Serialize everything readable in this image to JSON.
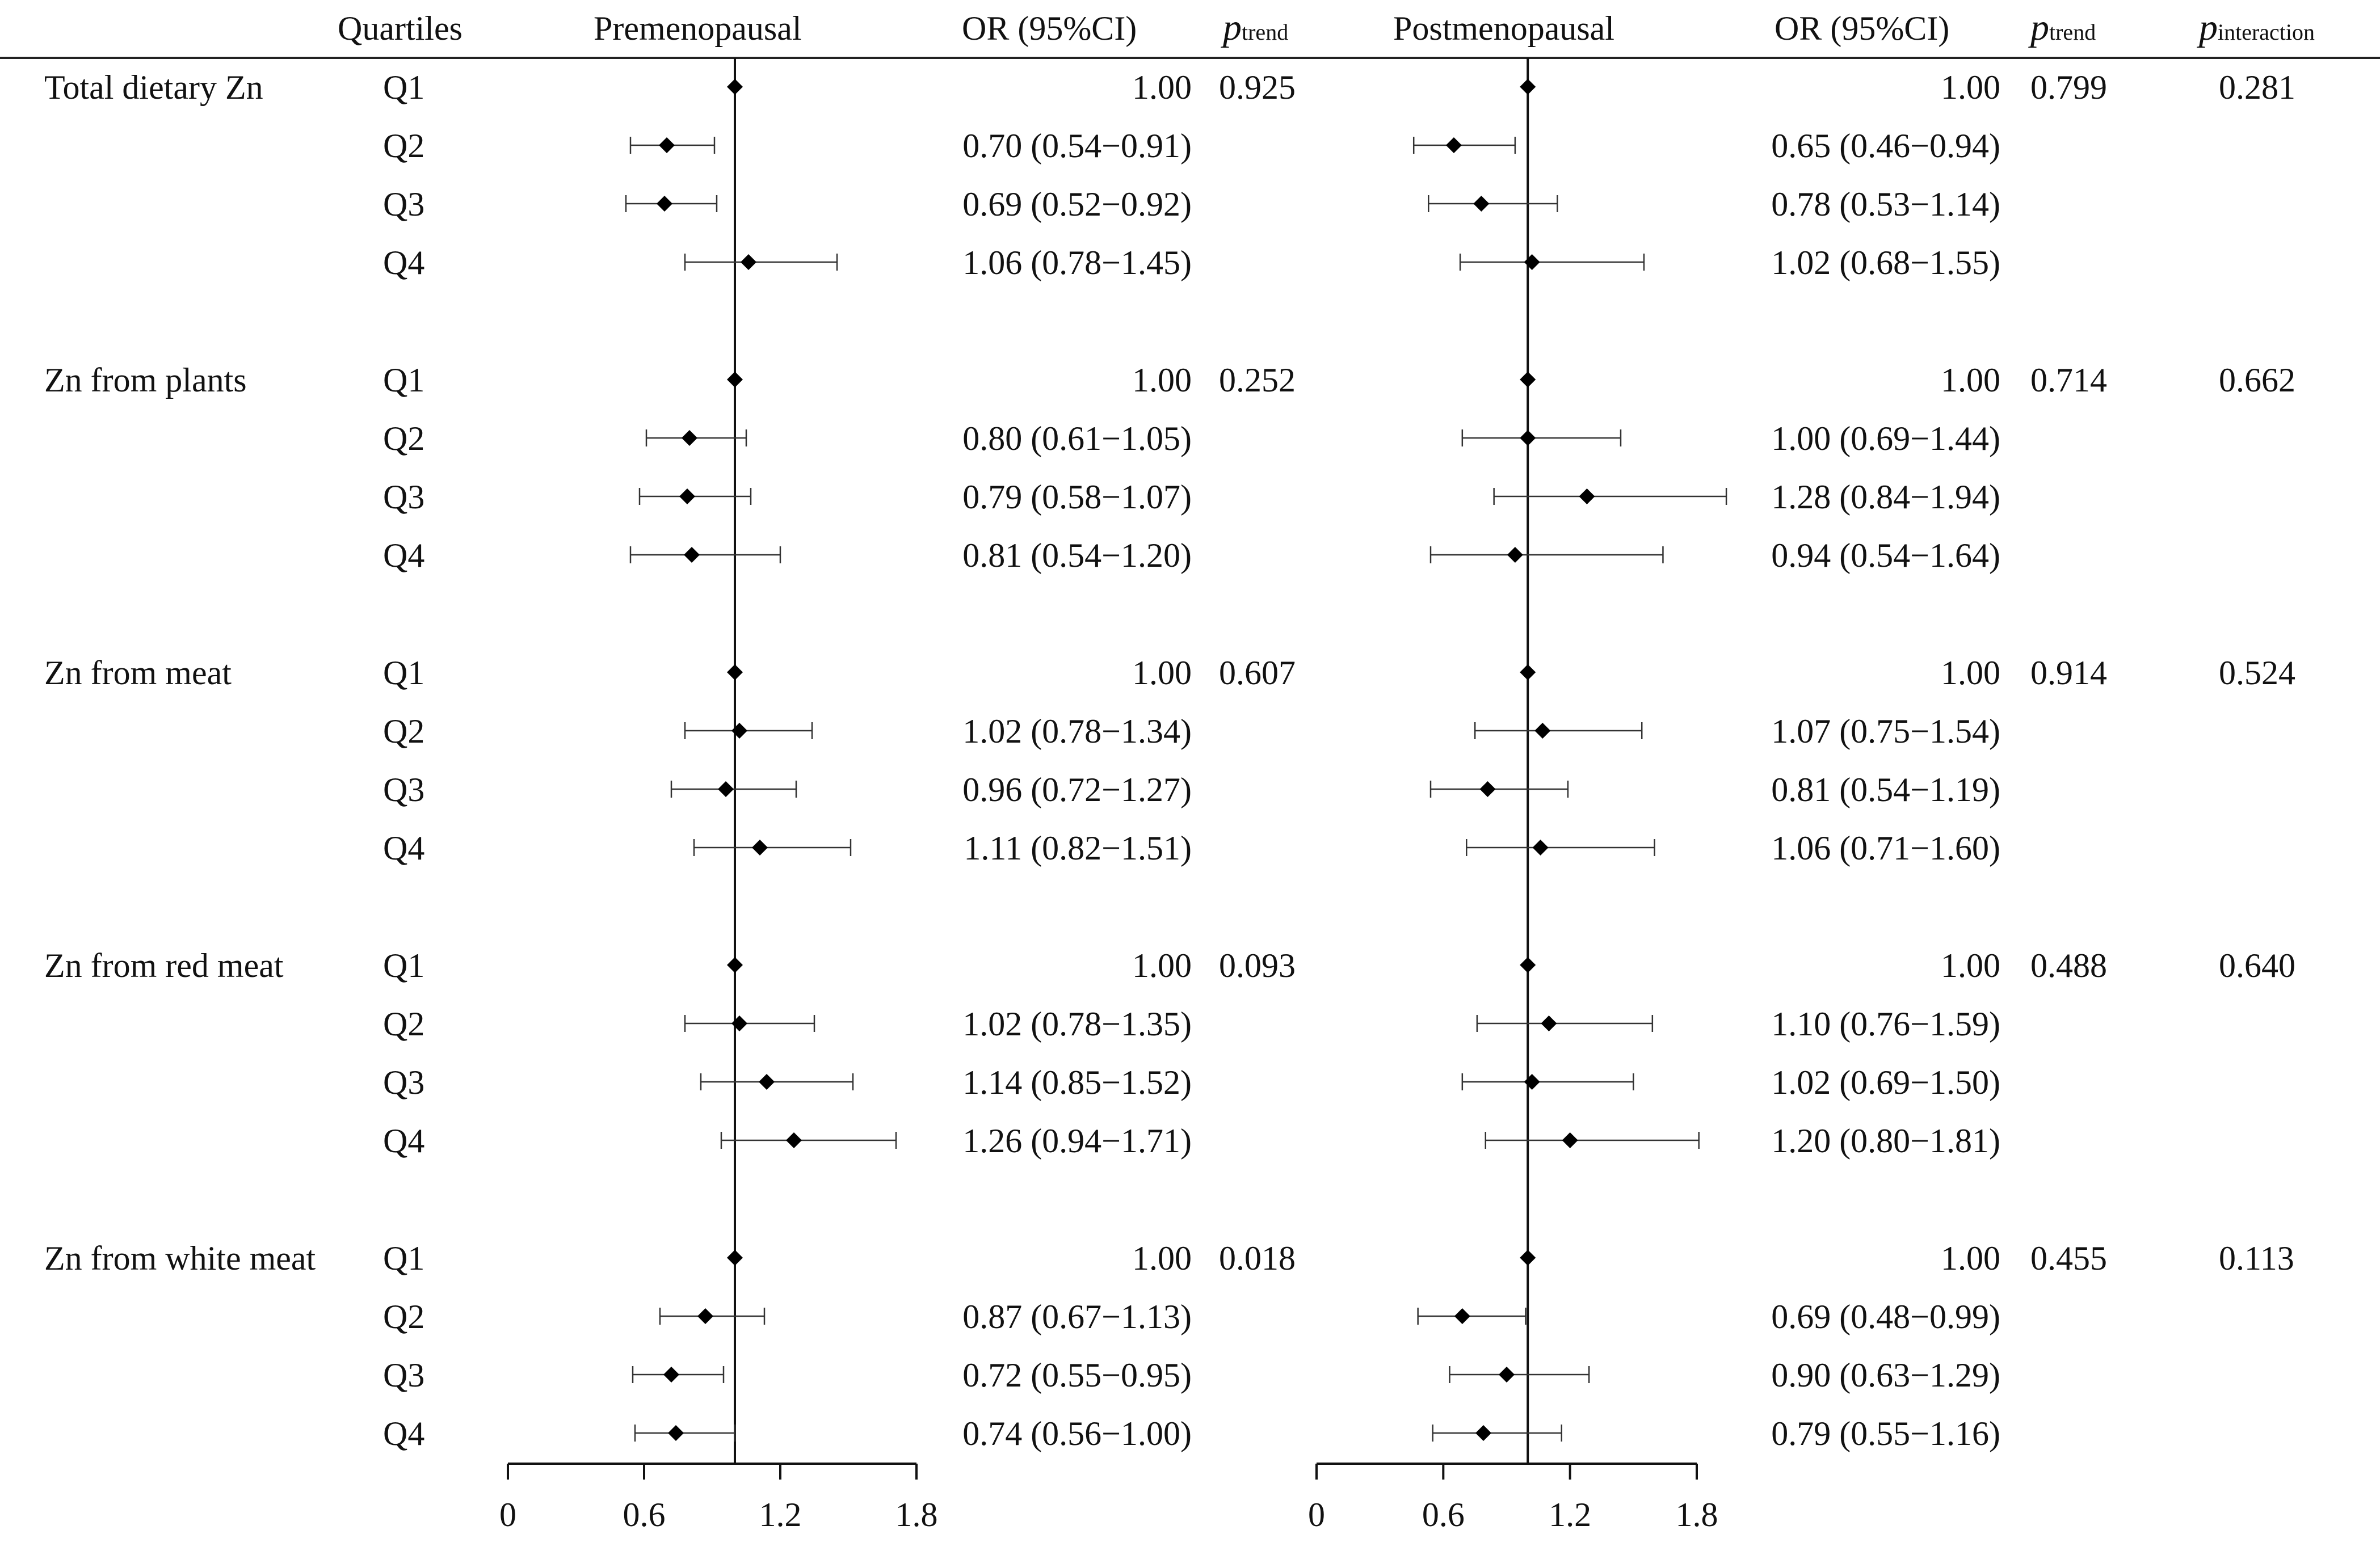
{
  "header": {
    "quartiles": "Quartiles",
    "premenopausal": "Premenopausal",
    "or_ci_pre": "OR (95%CI)",
    "p_trend_pre": {
      "p": "p",
      "sub": "trend"
    },
    "postmenopausal": "Postmenopausal",
    "or_ci_post": "OR (95%CI)",
    "p_trend_post": {
      "p": "p",
      "sub": "trend"
    },
    "p_interaction": {
      "p": "p",
      "sub": "interaction"
    }
  },
  "chart_data": {
    "type": "forest",
    "reference_value": 1.0,
    "xlim": [
      0,
      1.8
    ],
    "x_ticks": [
      "0",
      "0.6",
      "1.2",
      "1.8"
    ],
    "x_tick_values": [
      0,
      0.6,
      1.2,
      1.8
    ],
    "panels": [
      "Premenopausal",
      "Postmenopausal"
    ],
    "groups": [
      {
        "label": "Total dietary Zn",
        "p_trend_pre": "0.925",
        "p_trend_post": "0.799",
        "p_interaction": "0.281",
        "rows": [
          {
            "q": "Q1",
            "pre": {
              "or": 1.0,
              "lo": 1.0,
              "hi": 1.0,
              "text": "1.00"
            },
            "post": {
              "or": 1.0,
              "lo": 1.0,
              "hi": 1.0,
              "text": "1.00"
            }
          },
          {
            "q": "Q2",
            "pre": {
              "or": 0.7,
              "lo": 0.54,
              "hi": 0.91,
              "text": "0.70 (0.54−0.91)"
            },
            "post": {
              "or": 0.65,
              "lo": 0.46,
              "hi": 0.94,
              "text": "0.65 (0.46−0.94)"
            }
          },
          {
            "q": "Q3",
            "pre": {
              "or": 0.69,
              "lo": 0.52,
              "hi": 0.92,
              "text": "0.69 (0.52−0.92)"
            },
            "post": {
              "or": 0.78,
              "lo": 0.53,
              "hi": 1.14,
              "text": "0.78 (0.53−1.14)"
            }
          },
          {
            "q": "Q4",
            "pre": {
              "or": 1.06,
              "lo": 0.78,
              "hi": 1.45,
              "text": "1.06 (0.78−1.45)"
            },
            "post": {
              "or": 1.02,
              "lo": 0.68,
              "hi": 1.55,
              "text": "1.02 (0.68−1.55)"
            }
          }
        ]
      },
      {
        "label": "Zn from plants",
        "p_trend_pre": "0.252",
        "p_trend_post": "0.714",
        "p_interaction": "0.662",
        "rows": [
          {
            "q": "Q1",
            "pre": {
              "or": 1.0,
              "lo": 1.0,
              "hi": 1.0,
              "text": "1.00"
            },
            "post": {
              "or": 1.0,
              "lo": 1.0,
              "hi": 1.0,
              "text": "1.00"
            }
          },
          {
            "q": "Q2",
            "pre": {
              "or": 0.8,
              "lo": 0.61,
              "hi": 1.05,
              "text": "0.80 (0.61−1.05)"
            },
            "post": {
              "or": 1.0,
              "lo": 0.69,
              "hi": 1.44,
              "text": "1.00 (0.69−1.44)"
            }
          },
          {
            "q": "Q3",
            "pre": {
              "or": 0.79,
              "lo": 0.58,
              "hi": 1.07,
              "text": "0.79 (0.58−1.07)"
            },
            "post": {
              "or": 1.28,
              "lo": 0.84,
              "hi": 1.94,
              "text": "1.28 (0.84−1.94)"
            }
          },
          {
            "q": "Q4",
            "pre": {
              "or": 0.81,
              "lo": 0.54,
              "hi": 1.2,
              "text": "0.81 (0.54−1.20)"
            },
            "post": {
              "or": 0.94,
              "lo": 0.54,
              "hi": 1.64,
              "text": "0.94 (0.54−1.64)"
            }
          }
        ]
      },
      {
        "label": "Zn from meat",
        "p_trend_pre": "0.607",
        "p_trend_post": "0.914",
        "p_interaction": "0.524",
        "rows": [
          {
            "q": "Q1",
            "pre": {
              "or": 1.0,
              "lo": 1.0,
              "hi": 1.0,
              "text": "1.00"
            },
            "post": {
              "or": 1.0,
              "lo": 1.0,
              "hi": 1.0,
              "text": "1.00"
            }
          },
          {
            "q": "Q2",
            "pre": {
              "or": 1.02,
              "lo": 0.78,
              "hi": 1.34,
              "text": "1.02 (0.78−1.34)"
            },
            "post": {
              "or": 1.07,
              "lo": 0.75,
              "hi": 1.54,
              "text": "1.07 (0.75−1.54)"
            }
          },
          {
            "q": "Q3",
            "pre": {
              "or": 0.96,
              "lo": 0.72,
              "hi": 1.27,
              "text": "0.96 (0.72−1.27)"
            },
            "post": {
              "or": 0.81,
              "lo": 0.54,
              "hi": 1.19,
              "text": "0.81 (0.54−1.19)"
            }
          },
          {
            "q": "Q4",
            "pre": {
              "or": 1.11,
              "lo": 0.82,
              "hi": 1.51,
              "text": "1.11 (0.82−1.51)"
            },
            "post": {
              "or": 1.06,
              "lo": 0.71,
              "hi": 1.6,
              "text": "1.06 (0.71−1.60)"
            }
          }
        ]
      },
      {
        "label": "Zn from red meat",
        "p_trend_pre": "0.093",
        "p_trend_post": "0.488",
        "p_interaction": "0.640",
        "rows": [
          {
            "q": "Q1",
            "pre": {
              "or": 1.0,
              "lo": 1.0,
              "hi": 1.0,
              "text": "1.00"
            },
            "post": {
              "or": 1.0,
              "lo": 1.0,
              "hi": 1.0,
              "text": "1.00"
            }
          },
          {
            "q": "Q2",
            "pre": {
              "or": 1.02,
              "lo": 0.78,
              "hi": 1.35,
              "text": "1.02 (0.78−1.35)"
            },
            "post": {
              "or": 1.1,
              "lo": 0.76,
              "hi": 1.59,
              "text": "1.10 (0.76−1.59)"
            }
          },
          {
            "q": "Q3",
            "pre": {
              "or": 1.14,
              "lo": 0.85,
              "hi": 1.52,
              "text": "1.14 (0.85−1.52)"
            },
            "post": {
              "or": 1.02,
              "lo": 0.69,
              "hi": 1.5,
              "text": "1.02 (0.69−1.50)"
            }
          },
          {
            "q": "Q4",
            "pre": {
              "or": 1.26,
              "lo": 0.94,
              "hi": 1.71,
              "text": "1.26 (0.94−1.71)"
            },
            "post": {
              "or": 1.2,
              "lo": 0.8,
              "hi": 1.81,
              "text": "1.20 (0.80−1.81)"
            }
          }
        ]
      },
      {
        "label": "Zn from white meat",
        "p_trend_pre": "0.018",
        "p_trend_post": "0.455",
        "p_interaction": "0.113",
        "rows": [
          {
            "q": "Q1",
            "pre": {
              "or": 1.0,
              "lo": 1.0,
              "hi": 1.0,
              "text": "1.00"
            },
            "post": {
              "or": 1.0,
              "lo": 1.0,
              "hi": 1.0,
              "text": "1.00"
            }
          },
          {
            "q": "Q2",
            "pre": {
              "or": 0.87,
              "lo": 0.67,
              "hi": 1.13,
              "text": "0.87 (0.67−1.13)"
            },
            "post": {
              "or": 0.69,
              "lo": 0.48,
              "hi": 0.99,
              "text": "0.69 (0.48−0.99)"
            }
          },
          {
            "q": "Q3",
            "pre": {
              "or": 0.72,
              "lo": 0.55,
              "hi": 0.95,
              "text": "0.72 (0.55−0.95)"
            },
            "post": {
              "or": 0.9,
              "lo": 0.63,
              "hi": 1.29,
              "text": "0.90 (0.63−1.29)"
            }
          },
          {
            "q": "Q4",
            "pre": {
              "or": 0.74,
              "lo": 0.56,
              "hi": 1.0,
              "text": "0.74 (0.56−1.00)"
            },
            "post": {
              "or": 0.79,
              "lo": 0.55,
              "hi": 1.16,
              "text": "0.79 (0.55−1.16)"
            }
          }
        ]
      }
    ]
  }
}
